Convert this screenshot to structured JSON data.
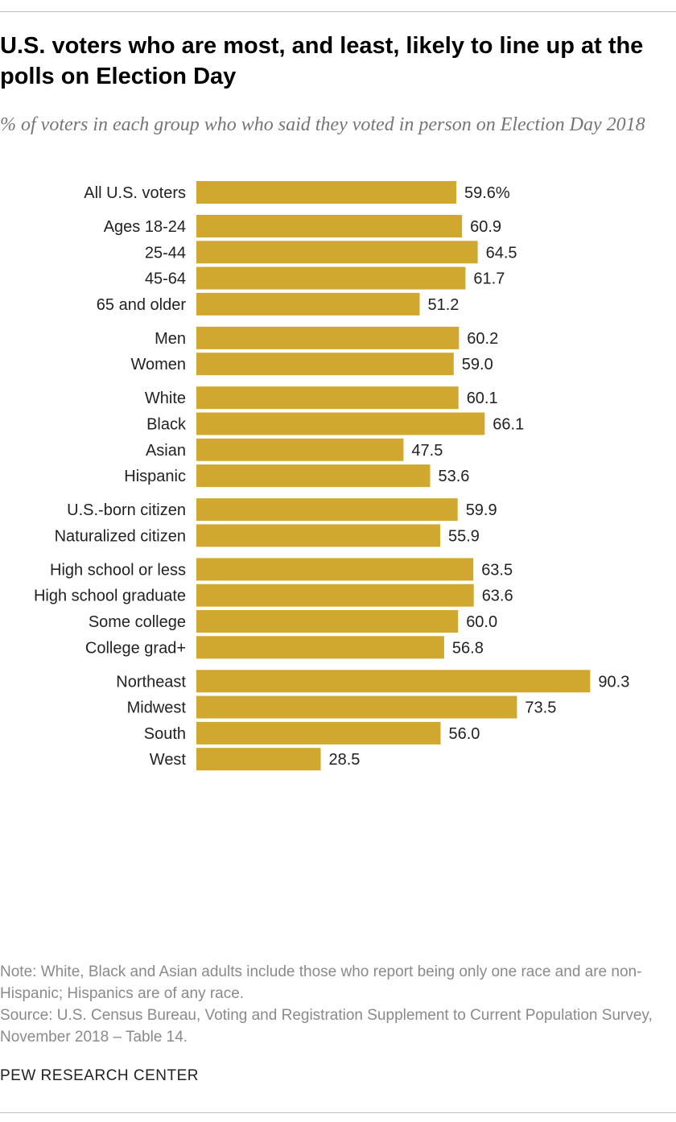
{
  "title": "U.S. voters who are most, and least, likely to line up at the polls on Election Day",
  "subtitle": "% of voters in each group who who said they voted in person on Election Day 2018",
  "note": "Note: White, Black and Asian adults include those who report being only one race and are non-Hispanic; Hispanics are of any race.",
  "source": "Source: U.S. Census Bureau, Voting and Registration Supplement to Current Population Survey, November 2018 – Table 14.",
  "brand": "PEW RESEARCH CENTER",
  "colors": {
    "bar": "#d1a82f",
    "subtitle": "#757575",
    "note": "#8a8a8a"
  },
  "chart_data": {
    "type": "bar",
    "orientation": "horizontal",
    "xlim": [
      0,
      100
    ],
    "grid": false,
    "groups": [
      {
        "rows": [
          {
            "label": "All U.S. voters",
            "value": 59.6,
            "value_label": "59.6%"
          }
        ]
      },
      {
        "rows": [
          {
            "label": "Ages 18-24",
            "value": 60.9,
            "value_label": "60.9"
          },
          {
            "label": "25-44",
            "value": 64.5,
            "value_label": "64.5"
          },
          {
            "label": "45-64",
            "value": 61.7,
            "value_label": "61.7"
          },
          {
            "label": "65 and older",
            "value": 51.2,
            "value_label": "51.2"
          }
        ]
      },
      {
        "rows": [
          {
            "label": "Men",
            "value": 60.2,
            "value_label": "60.2"
          },
          {
            "label": "Women",
            "value": 59.0,
            "value_label": "59.0"
          }
        ]
      },
      {
        "rows": [
          {
            "label": "White",
            "value": 60.1,
            "value_label": "60.1"
          },
          {
            "label": "Black",
            "value": 66.1,
            "value_label": "66.1"
          },
          {
            "label": "Asian",
            "value": 47.5,
            "value_label": "47.5"
          },
          {
            "label": "Hispanic",
            "value": 53.6,
            "value_label": "53.6"
          }
        ]
      },
      {
        "rows": [
          {
            "label": "U.S.-born citizen",
            "value": 59.9,
            "value_label": "59.9"
          },
          {
            "label": "Naturalized citizen",
            "value": 55.9,
            "value_label": "55.9"
          }
        ]
      },
      {
        "rows": [
          {
            "label": "High school or less",
            "value": 63.5,
            "value_label": "63.5"
          },
          {
            "label": "High school graduate",
            "value": 63.6,
            "value_label": "63.6"
          },
          {
            "label": "Some college",
            "value": 60.0,
            "value_label": "60.0"
          },
          {
            "label": "College grad+",
            "value": 56.8,
            "value_label": "56.8"
          }
        ]
      },
      {
        "rows": [
          {
            "label": "Northeast",
            "value": 90.3,
            "value_label": "90.3"
          },
          {
            "label": "Midwest",
            "value": 73.5,
            "value_label": "73.5"
          },
          {
            "label": "South",
            "value": 56.0,
            "value_label": "56.0"
          },
          {
            "label": "West",
            "value": 28.5,
            "value_label": "28.5"
          }
        ]
      }
    ]
  }
}
